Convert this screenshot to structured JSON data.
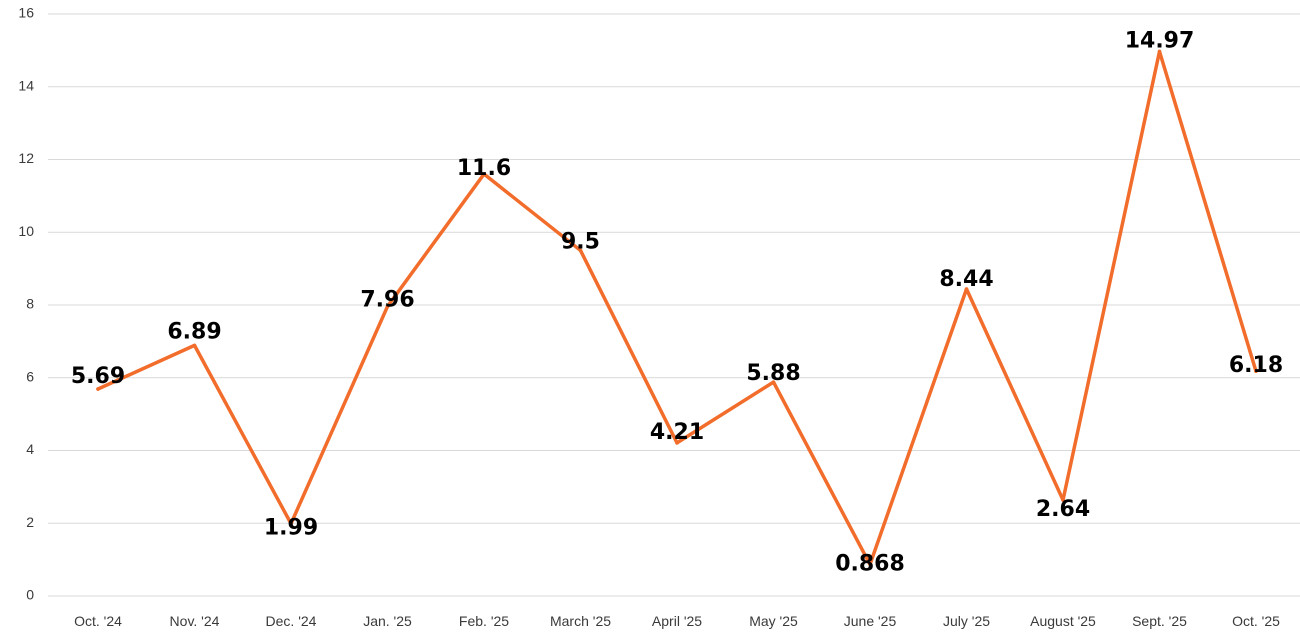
{
  "chart_data": {
    "type": "line",
    "categories": [
      "Oct. '24",
      "Nov. '24",
      "Dec. '24",
      "Jan. '25",
      "Feb. '25",
      "March '25",
      "April '25",
      "May '25",
      "June '25",
      "July '25",
      "August '25",
      "Sept. '25",
      "Oct. '25"
    ],
    "series": [
      {
        "values": [
          5.69,
          6.89,
          1.99,
          7.96,
          11.6,
          9.5,
          4.21,
          5.88,
          0.868,
          8.44,
          2.64,
          14.97,
          6.18
        ],
        "labels": [
          "5.69",
          "6.89",
          "1.99",
          "7.96",
          "11.6",
          "9.5",
          "4.21",
          "5.88",
          "0.868",
          "8.44",
          "2.64",
          "14.97",
          "6.18"
        ],
        "color": "#f26d2b"
      }
    ],
    "yticks": [
      "0",
      "2",
      "4",
      "6",
      "8",
      "10",
      "12",
      "14",
      "16"
    ],
    "ylim": [
      0,
      16
    ],
    "grid": true,
    "legend": "none",
    "title": "",
    "xlabel": "",
    "ylabel": ""
  }
}
